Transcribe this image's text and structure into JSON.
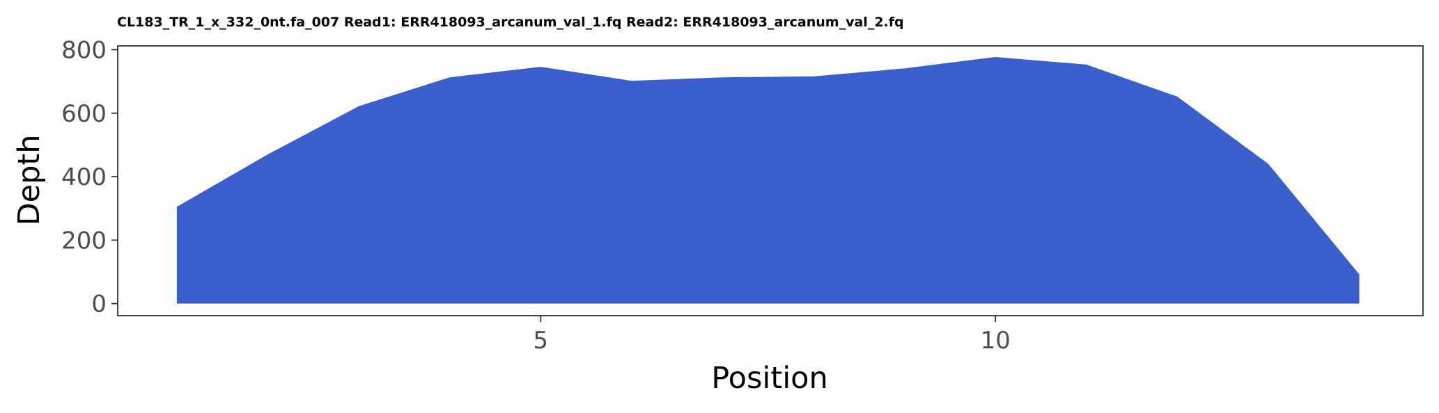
{
  "chart_data": {
    "type": "area",
    "title": "CL183_TR_1_x_332_0nt.fa_007 Read1: ERR418093_arcanum_val_1.fq Read2: ERR418093_arcanum_val_2.fq",
    "xlabel": "Position",
    "ylabel": "Depth",
    "xlim": [
      0.35,
      14.7
    ],
    "ylim": [
      -38,
      812
    ],
    "x_ticks": [
      5,
      10
    ],
    "y_ticks": [
      0,
      200,
      400,
      600,
      800
    ],
    "grid": false,
    "fill_color": "#3a5fcd",
    "series": [
      {
        "x": [
          1,
          2,
          3,
          4,
          5,
          6,
          7,
          8,
          9,
          10,
          11,
          12,
          13,
          14
        ],
        "values": [
          305,
          470,
          622,
          713,
          746,
          702,
          713,
          716,
          741,
          777,
          753,
          652,
          440,
          92
        ]
      }
    ]
  }
}
